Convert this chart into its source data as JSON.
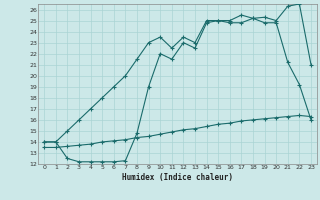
{
  "xlabel": "Humidex (Indice chaleur)",
  "bg_color": "#cce8e8",
  "line_color": "#1a6b6b",
  "grid_color": "#aad4d4",
  "xlim": [
    -0.5,
    23.5
  ],
  "ylim": [
    12,
    26.5
  ],
  "xticks": [
    0,
    1,
    2,
    3,
    4,
    5,
    6,
    7,
    8,
    9,
    10,
    11,
    12,
    13,
    14,
    15,
    16,
    17,
    18,
    19,
    20,
    21,
    22,
    23
  ],
  "yticks": [
    12,
    13,
    14,
    15,
    16,
    17,
    18,
    19,
    20,
    21,
    22,
    23,
    24,
    25,
    26
  ],
  "line1_x": [
    0,
    1,
    2,
    3,
    4,
    5,
    6,
    7,
    8,
    9,
    10,
    11,
    12,
    13,
    14,
    15,
    16,
    17,
    18,
    19,
    20,
    21,
    22,
    23
  ],
  "line1_y": [
    14.0,
    14.0,
    15.0,
    16.0,
    17.0,
    18.0,
    19.0,
    20.0,
    21.5,
    23.0,
    23.5,
    22.5,
    23.5,
    23.0,
    25.0,
    25.0,
    25.0,
    25.5,
    25.2,
    25.3,
    25.0,
    26.3,
    26.5,
    21.0
  ],
  "line2_x": [
    0,
    1,
    2,
    3,
    4,
    5,
    6,
    7,
    8,
    9,
    10,
    11,
    12,
    13,
    14,
    15,
    16,
    17,
    18,
    19,
    20,
    21,
    22,
    23
  ],
  "line2_y": [
    14.0,
    14.0,
    12.5,
    12.2,
    12.2,
    12.2,
    12.2,
    12.3,
    14.8,
    19.0,
    22.0,
    21.5,
    23.0,
    22.5,
    24.8,
    25.0,
    24.8,
    24.8,
    25.2,
    24.8,
    24.8,
    21.2,
    19.2,
    16.0
  ],
  "line3_x": [
    0,
    1,
    2,
    3,
    4,
    5,
    6,
    7,
    8,
    9,
    10,
    11,
    12,
    13,
    14,
    15,
    16,
    17,
    18,
    19,
    20,
    21,
    22,
    23
  ],
  "line3_y": [
    13.5,
    13.5,
    13.6,
    13.7,
    13.8,
    14.0,
    14.1,
    14.2,
    14.4,
    14.5,
    14.7,
    14.9,
    15.1,
    15.2,
    15.4,
    15.6,
    15.7,
    15.9,
    16.0,
    16.1,
    16.2,
    16.3,
    16.4,
    16.3
  ]
}
